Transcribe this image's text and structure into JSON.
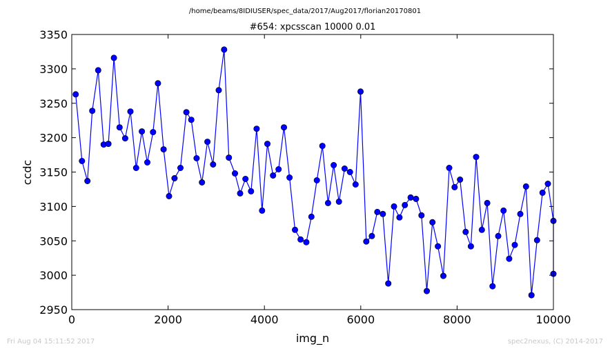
{
  "footer": {
    "timestamp": "Fri Aug 04 15:11:52 2017",
    "credit": "spec2nexus, (C) 2014-2017"
  },
  "chart_data": {
    "type": "line",
    "suptitle": "/home/beams/8IDIUSER/spec_data/2017/Aug2017/florian20170801",
    "title": "#654: xpcsscan 10000 0.01",
    "xlabel": "img_n",
    "ylabel": "ccdc",
    "xlim": [
      0,
      10000
    ],
    "ylim": [
      2950,
      3350
    ],
    "xticks": [
      0,
      2000,
      4000,
      6000,
      8000,
      10000
    ],
    "yticks": [
      2950,
      3000,
      3050,
      3100,
      3150,
      3200,
      3250,
      3300,
      3350
    ],
    "grid": false,
    "legend": "none",
    "line_color": "#0000ff",
    "marker_color": "#0000ff",
    "series": [
      {
        "x": [
          82,
          212,
          325,
          425,
          548,
          664,
          761,
          876,
          993,
          1109,
          1218,
          1336,
          1456,
          1569,
          1688,
          1790,
          1907,
          2020,
          2133,
          2256,
          2379,
          2482,
          2592,
          2703,
          2817,
          2934,
          3051,
          3163,
          3262,
          3388,
          3496,
          3606,
          3722,
          3838,
          3951,
          4062,
          4179,
          4294,
          4406,
          4522,
          4634,
          4750,
          4869,
          4976,
          5089,
          5204,
          5321,
          5438,
          5547,
          5665,
          5777,
          5893,
          5996,
          6114,
          6231,
          6344,
          6459,
          6571,
          6691,
          6804,
          6916,
          7036,
          7148,
          7261,
          7371,
          7488,
          7602,
          7715,
          7837,
          7948,
          8061,
          8177,
          8287,
          8396,
          8514,
          8626,
          8737,
          8854,
          8964,
          9082,
          9197,
          9313,
          9431,
          9544,
          9660,
          9774,
          9886,
          10000,
          10000
        ],
        "y": [
          3263,
          3166,
          3137,
          3239,
          3298,
          3190,
          3191,
          3316,
          3215,
          3199,
          3238,
          3156,
          3209,
          3164,
          3208,
          3279,
          3183,
          3115,
          3141,
          3156,
          3237,
          3226,
          3170,
          3135,
          3194,
          3161,
          3269,
          3328,
          3171,
          3148,
          3119,
          3140,
          3122,
          3213,
          3094,
          3191,
          3145,
          3154,
          3215,
          3142,
          3066,
          3052,
          3048,
          3085,
          3138,
          3188,
          3105,
          3160,
          3107,
          3155,
          3150,
          3132,
          3267,
          3049,
          3057,
          3092,
          3089,
          2988,
          3100,
          3084,
          3102,
          3113,
          3111,
          3087,
          2977,
          3077,
          3042,
          2999,
          3156,
          3128,
          3139,
          3063,
          3042,
          3172,
          3066,
          3105,
          2984,
          3057,
          3094,
          3024,
          3044,
          3089,
          3129,
          2971,
          3051,
          3120,
          3133,
          3079,
          3002
        ]
      }
    ]
  }
}
